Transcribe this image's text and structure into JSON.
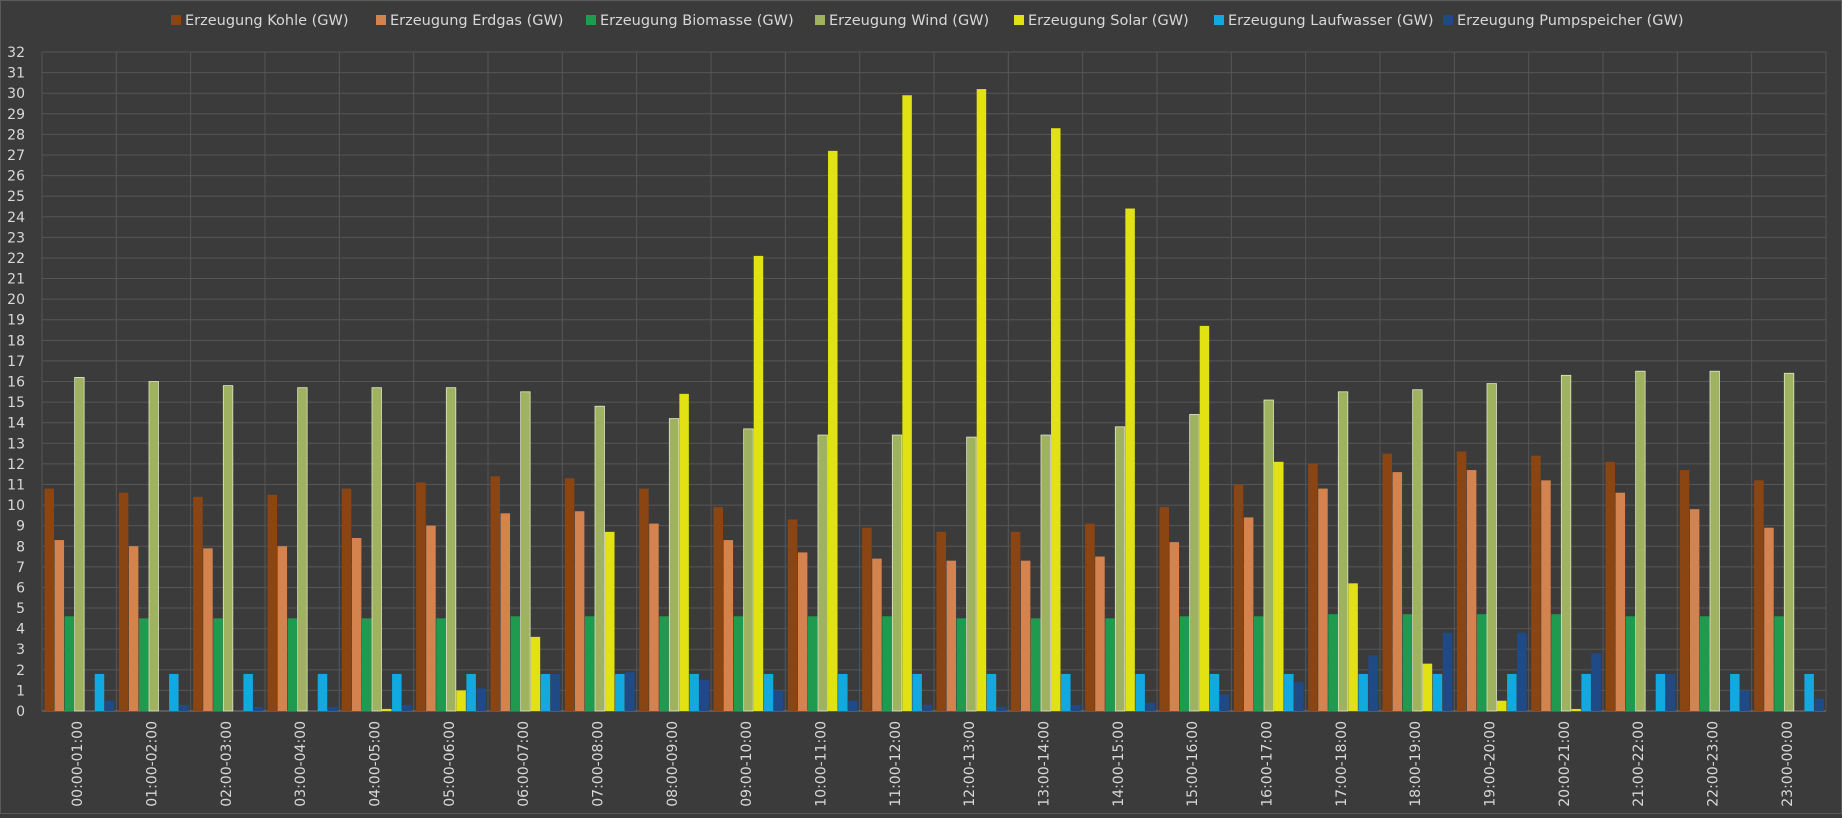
{
  "chart_data": {
    "type": "bar",
    "title": "",
    "xlabel": "",
    "ylabel": "",
    "ylim": [
      0,
      32
    ],
    "yticks": [
      0,
      1,
      2,
      3,
      4,
      5,
      6,
      7,
      8,
      9,
      10,
      11,
      12,
      13,
      14,
      15,
      16,
      17,
      18,
      19,
      20,
      21,
      22,
      23,
      24,
      25,
      26,
      27,
      28,
      29,
      30,
      31,
      32
    ],
    "grid": true,
    "legend_position": "top",
    "categories": [
      "00:00-01:00",
      "01:00-02:00",
      "02:00-03:00",
      "03:00-04:00",
      "04:00-05:00",
      "05:00-06:00",
      "06:00-07:00",
      "07:00-08:00",
      "08:00-09:00",
      "09:00-10:00",
      "10:00-11:00",
      "11:00-12:00",
      "12:00-13:00",
      "13:00-14:00",
      "14:00-15:00",
      "15:00-16:00",
      "16:00-17:00",
      "17:00-18:00",
      "18:00-19:00",
      "19:00-20:00",
      "20:00-21:00",
      "21:00-22:00",
      "22:00-23:00",
      "23:00-00:00"
    ],
    "series": [
      {
        "name": "Erzeugung Kohle (GW)",
        "color": "#8b4513",
        "values": [
          10.8,
          10.6,
          10.4,
          10.5,
          10.8,
          11.1,
          11.4,
          11.3,
          10.8,
          9.9,
          9.3,
          8.9,
          8.7,
          8.7,
          9.1,
          9.9,
          11.0,
          12.0,
          12.5,
          12.6,
          12.4,
          12.1,
          11.7,
          11.2
        ]
      },
      {
        "name": "Erzeugung Erdgas (GW)",
        "color": "#d4834e",
        "values": [
          8.3,
          8.0,
          7.9,
          8.0,
          8.4,
          9.0,
          9.6,
          9.7,
          9.1,
          8.3,
          7.7,
          7.4,
          7.3,
          7.3,
          7.5,
          8.2,
          9.4,
          10.8,
          11.6,
          11.7,
          11.2,
          10.6,
          9.8,
          8.9
        ]
      },
      {
        "name": "Erzeugung Biomasse (GW)",
        "color": "#1e9b4e",
        "values": [
          4.6,
          4.5,
          4.5,
          4.5,
          4.5,
          4.5,
          4.6,
          4.6,
          4.6,
          4.6,
          4.6,
          4.6,
          4.5,
          4.5,
          4.5,
          4.6,
          4.6,
          4.7,
          4.7,
          4.7,
          4.7,
          4.6,
          4.6,
          4.6
        ]
      },
      {
        "name": "Erzeugung Wind (GW)",
        "color": "#9fb25f",
        "values": [
          16.2,
          16.0,
          15.8,
          15.7,
          15.7,
          15.7,
          15.5,
          14.8,
          14.2,
          13.7,
          13.4,
          13.4,
          13.3,
          13.4,
          13.8,
          14.4,
          15.1,
          15.5,
          15.6,
          15.9,
          16.3,
          16.5,
          16.5,
          16.4
        ]
      },
      {
        "name": "Erzeugung Solar (GW)",
        "color": "#e1e114",
        "values": [
          0,
          0,
          0,
          0,
          0.1,
          1.0,
          3.6,
          8.7,
          15.4,
          22.1,
          27.2,
          29.9,
          30.2,
          28.3,
          24.4,
          18.7,
          12.1,
          6.2,
          2.3,
          0.5,
          0.1,
          0,
          0,
          0
        ]
      },
      {
        "name": "Erzeugung Laufwasser (GW)",
        "color": "#12a8e0",
        "values": [
          1.8,
          1.8,
          1.8,
          1.8,
          1.8,
          1.8,
          1.8,
          1.8,
          1.8,
          1.8,
          1.8,
          1.8,
          1.8,
          1.8,
          1.8,
          1.8,
          1.8,
          1.8,
          1.8,
          1.8,
          1.8,
          1.8,
          1.8,
          1.8
        ]
      },
      {
        "name": "Erzeugung Pumpspeicher (GW)",
        "color": "#1f4a86",
        "values": [
          0.5,
          0.3,
          0.2,
          0.2,
          0.3,
          1.1,
          1.8,
          1.9,
          1.5,
          1.0,
          0.5,
          0.3,
          0.2,
          0.3,
          0.4,
          0.8,
          1.4,
          2.7,
          3.8,
          3.8,
          2.8,
          1.8,
          1.0,
          0.6
        ]
      }
    ]
  }
}
